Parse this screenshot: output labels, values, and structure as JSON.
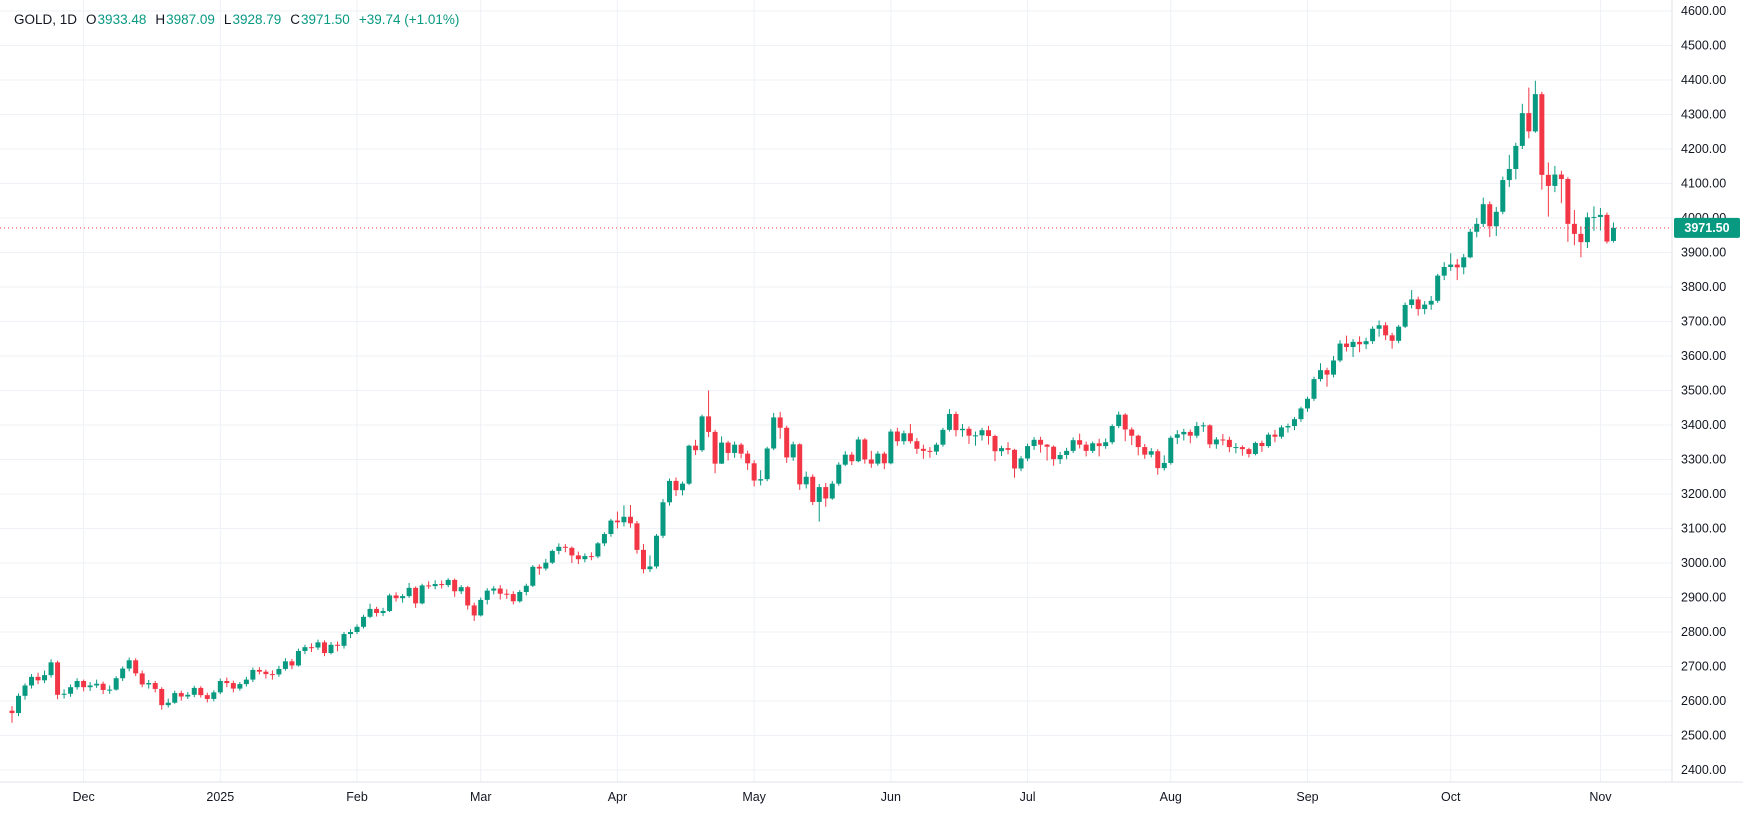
{
  "header": {
    "symbol_title": "GOLD, 1D",
    "open_label": "O",
    "open": "3933.48",
    "high_label": "H",
    "high": "3987.09",
    "low_label": "L",
    "low": "3928.79",
    "close_label": "C",
    "close": "3971.50",
    "change": "+39.74 (+1.01%)"
  },
  "colors": {
    "up": "#089981",
    "down": "#f23645",
    "text": "#131722",
    "grid": "#eef1f6",
    "axis_line": "#e0e3eb",
    "price_line": "#f23645",
    "price_tag_bg": "#089981",
    "price_tag_text": "#ffffff",
    "background": "#ffffff"
  },
  "chart_data": {
    "type": "candlestick",
    "title": "GOLD, 1D",
    "symbol": "GOLD",
    "timeframe": "1D",
    "legend_position": "top-left",
    "grid": true,
    "y_axis": {
      "min": 2400,
      "max": 4600,
      "step": 100,
      "decimals": 2,
      "side": "right"
    },
    "x_axis": {
      "months": [
        {
          "label": "Dec",
          "index": 11
        },
        {
          "label": "2025",
          "index": 32
        },
        {
          "label": "Feb",
          "index": 53
        },
        {
          "label": "Mar",
          "index": 72
        },
        {
          "label": "Apr",
          "index": 93
        },
        {
          "label": "May",
          "index": 114
        },
        {
          "label": "Jun",
          "index": 135
        },
        {
          "label": "Jul",
          "index": 156
        },
        {
          "label": "Aug",
          "index": 178
        },
        {
          "label": "Sep",
          "index": 199
        },
        {
          "label": "Oct",
          "index": 221
        },
        {
          "label": "Nov",
          "index": 244
        }
      ]
    },
    "price_line": {
      "value": 3971.5,
      "label": "3971.50"
    },
    "last_candle": {
      "open": 3933.48,
      "high": 3987.09,
      "low": 3928.79,
      "close": 3971.5,
      "change": "+39.74 (+1.01%)"
    },
    "candles": [
      [
        2572,
        2585,
        2537,
        2565
      ],
      [
        2565,
        2622,
        2556,
        2615
      ],
      [
        2615,
        2651,
        2604,
        2645
      ],
      [
        2645,
        2678,
        2636,
        2670
      ],
      [
        2670,
        2682,
        2649,
        2660
      ],
      [
        2660,
        2688,
        2652,
        2675
      ],
      [
        2675,
        2721,
        2668,
        2712
      ],
      [
        2712,
        2717,
        2605,
        2618
      ],
      [
        2618,
        2634,
        2607,
        2621
      ],
      [
        2621,
        2648,
        2612,
        2640
      ],
      [
        2640,
        2666,
        2633,
        2658
      ],
      [
        2658,
        2662,
        2628,
        2640
      ],
      [
        2640,
        2655,
        2629,
        2645
      ],
      [
        2645,
        2662,
        2638,
        2650
      ],
      [
        2650,
        2656,
        2620,
        2632
      ],
      [
        2632,
        2645,
        2621,
        2633
      ],
      [
        2633,
        2672,
        2630,
        2666
      ],
      [
        2666,
        2700,
        2658,
        2694
      ],
      [
        2694,
        2726,
        2686,
        2718
      ],
      [
        2718,
        2724,
        2672,
        2680
      ],
      [
        2680,
        2688,
        2640,
        2648
      ],
      [
        2648,
        2661,
        2636,
        2652
      ],
      [
        2652,
        2658,
        2625,
        2635
      ],
      [
        2635,
        2640,
        2575,
        2588
      ],
      [
        2588,
        2607,
        2581,
        2595
      ],
      [
        2595,
        2630,
        2592,
        2623
      ],
      [
        2623,
        2630,
        2601,
        2613
      ],
      [
        2613,
        2626,
        2606,
        2618
      ],
      [
        2618,
        2644,
        2611,
        2638
      ],
      [
        2638,
        2643,
        2610,
        2617
      ],
      [
        2617,
        2624,
        2596,
        2606
      ],
      [
        2606,
        2631,
        2599,
        2625
      ],
      [
        2625,
        2665,
        2620,
        2658
      ],
      [
        2658,
        2668,
        2640,
        2652
      ],
      [
        2652,
        2659,
        2625,
        2636
      ],
      [
        2636,
        2655,
        2630,
        2649
      ],
      [
        2649,
        2670,
        2642,
        2662
      ],
      [
        2662,
        2697,
        2655,
        2690
      ],
      [
        2690,
        2698,
        2677,
        2685
      ],
      [
        2685,
        2691,
        2665,
        2678
      ],
      [
        2678,
        2689,
        2662,
        2677
      ],
      [
        2677,
        2702,
        2670,
        2693
      ],
      [
        2693,
        2724,
        2688,
        2715
      ],
      [
        2715,
        2722,
        2692,
        2703
      ],
      [
        2703,
        2752,
        2700,
        2745
      ],
      [
        2745,
        2763,
        2736,
        2756
      ],
      [
        2756,
        2767,
        2742,
        2755
      ],
      [
        2755,
        2778,
        2748,
        2770
      ],
      [
        2770,
        2776,
        2730,
        2739
      ],
      [
        2739,
        2771,
        2735,
        2763
      ],
      [
        2763,
        2772,
        2744,
        2760
      ],
      [
        2760,
        2800,
        2752,
        2794
      ],
      [
        2794,
        2808,
        2782,
        2800
      ],
      [
        2800,
        2822,
        2794,
        2815
      ],
      [
        2815,
        2850,
        2810,
        2844
      ],
      [
        2844,
        2882,
        2840,
        2867
      ],
      [
        2867,
        2873,
        2845,
        2855
      ],
      [
        2855,
        2870,
        2846,
        2861
      ],
      [
        2861,
        2911,
        2858,
        2906
      ],
      [
        2906,
        2915,
        2888,
        2898
      ],
      [
        2898,
        2910,
        2885,
        2904
      ],
      [
        2904,
        2942,
        2899,
        2928
      ],
      [
        2928,
        2932,
        2870,
        2883
      ],
      [
        2883,
        2940,
        2880,
        2935
      ],
      [
        2935,
        2947,
        2925,
        2933
      ],
      [
        2933,
        2950,
        2924,
        2939
      ],
      [
        2939,
        2949,
        2926,
        2936
      ],
      [
        2936,
        2956,
        2930,
        2951
      ],
      [
        2951,
        2955,
        2902,
        2918
      ],
      [
        2918,
        2936,
        2910,
        2930
      ],
      [
        2930,
        2934,
        2865,
        2877
      ],
      [
        2877,
        2885,
        2832,
        2848
      ],
      [
        2848,
        2900,
        2845,
        2893
      ],
      [
        2893,
        2927,
        2880,
        2920
      ],
      [
        2920,
        2933,
        2909,
        2926
      ],
      [
        2926,
        2936,
        2894,
        2911
      ],
      [
        2911,
        2924,
        2896,
        2910
      ],
      [
        2910,
        2918,
        2880,
        2889
      ],
      [
        2889,
        2922,
        2885,
        2916
      ],
      [
        2916,
        2940,
        2906,
        2934
      ],
      [
        2934,
        2994,
        2930,
        2989
      ],
      [
        2989,
        2996,
        2966,
        2984
      ],
      [
        2984,
        3012,
        2978,
        3001
      ],
      [
        3001,
        3039,
        2997,
        3035
      ],
      [
        3035,
        3057,
        3025,
        3047
      ],
      [
        3047,
        3055,
        3031,
        3044
      ],
      [
        3044,
        3048,
        3000,
        3022
      ],
      [
        3022,
        3033,
        2997,
        3011
      ],
      [
        3011,
        3028,
        3002,
        3020
      ],
      [
        3020,
        3031,
        3008,
        3019
      ],
      [
        3019,
        3061,
        3014,
        3057
      ],
      [
        3057,
        3089,
        3049,
        3084
      ],
      [
        3084,
        3128,
        3076,
        3123
      ],
      [
        3123,
        3149,
        3100,
        3118
      ],
      [
        3118,
        3167,
        3106,
        3134
      ],
      [
        3134,
        3168,
        3102,
        3115
      ],
      [
        3115,
        3122,
        3027,
        3038
      ],
      [
        3038,
        3055,
        2970,
        2982
      ],
      [
        2982,
        3022,
        2974,
        2990
      ],
      [
        2990,
        3084,
        2984,
        3079
      ],
      [
        3079,
        3185,
        3072,
        3176
      ],
      [
        3176,
        3245,
        3166,
        3238
      ],
      [
        3238,
        3248,
        3194,
        3211
      ],
      [
        3211,
        3236,
        3196,
        3230
      ],
      [
        3230,
        3343,
        3226,
        3340
      ],
      [
        3340,
        3357,
        3313,
        3327
      ],
      [
        3327,
        3430,
        3322,
        3425
      ],
      [
        3425,
        3500,
        3365,
        3380
      ],
      [
        3380,
        3386,
        3260,
        3288
      ],
      [
        3288,
        3367,
        3287,
        3349
      ],
      [
        3349,
        3354,
        3297,
        3319
      ],
      [
        3319,
        3352,
        3305,
        3343
      ],
      [
        3343,
        3348,
        3303,
        3317
      ],
      [
        3317,
        3326,
        3270,
        3289
      ],
      [
        3289,
        3298,
        3222,
        3239
      ],
      [
        3239,
        3269,
        3225,
        3243
      ],
      [
        3243,
        3337,
        3237,
        3332
      ],
      [
        3332,
        3435,
        3327,
        3422
      ],
      [
        3422,
        3438,
        3360,
        3392
      ],
      [
        3392,
        3398,
        3290,
        3306
      ],
      [
        3306,
        3352,
        3296,
        3344
      ],
      [
        3344,
        3347,
        3212,
        3228
      ],
      [
        3228,
        3265,
        3216,
        3250
      ],
      [
        3250,
        3257,
        3168,
        3177
      ],
      [
        3177,
        3229,
        3120,
        3220
      ],
      [
        3220,
        3232,
        3163,
        3187
      ],
      [
        3187,
        3238,
        3183,
        3230
      ],
      [
        3230,
        3292,
        3224,
        3285
      ],
      [
        3285,
        3324,
        3281,
        3314
      ],
      [
        3314,
        3322,
        3284,
        3295
      ],
      [
        3295,
        3366,
        3292,
        3358
      ],
      [
        3358,
        3362,
        3288,
        3300
      ],
      [
        3300,
        3325,
        3276,
        3288
      ],
      [
        3288,
        3324,
        3282,
        3317
      ],
      [
        3317,
        3323,
        3272,
        3289
      ],
      [
        3289,
        3388,
        3286,
        3381
      ],
      [
        3381,
        3392,
        3340,
        3353
      ],
      [
        3353,
        3384,
        3343,
        3376
      ],
      [
        3376,
        3403,
        3346,
        3353
      ],
      [
        3353,
        3362,
        3316,
        3331
      ],
      [
        3331,
        3343,
        3302,
        3325
      ],
      [
        3325,
        3336,
        3305,
        3323
      ],
      [
        3323,
        3349,
        3313,
        3343
      ],
      [
        3343,
        3392,
        3337,
        3386
      ],
      [
        3386,
        3446,
        3381,
        3432
      ],
      [
        3432,
        3439,
        3367,
        3385
      ],
      [
        3385,
        3403,
        3366,
        3389
      ],
      [
        3389,
        3396,
        3345,
        3369
      ],
      [
        3369,
        3381,
        3340,
        3370
      ],
      [
        3370,
        3392,
        3355,
        3385
      ],
      [
        3385,
        3398,
        3343,
        3368
      ],
      [
        3368,
        3372,
        3295,
        3324
      ],
      [
        3324,
        3340,
        3310,
        3333
      ],
      [
        3333,
        3350,
        3315,
        3328
      ],
      [
        3328,
        3331,
        3247,
        3274
      ],
      [
        3274,
        3310,
        3266,
        3303
      ],
      [
        3303,
        3346,
        3295,
        3339
      ],
      [
        3339,
        3365,
        3328,
        3357
      ],
      [
        3357,
        3366,
        3320,
        3343
      ],
      [
        3343,
        3345,
        3297,
        3337
      ],
      [
        3337,
        3341,
        3282,
        3301
      ],
      [
        3301,
        3322,
        3287,
        3313
      ],
      [
        3313,
        3334,
        3301,
        3325
      ],
      [
        3325,
        3364,
        3319,
        3356
      ],
      [
        3356,
        3375,
        3332,
        3343
      ],
      [
        3343,
        3352,
        3309,
        3325
      ],
      [
        3325,
        3352,
        3319,
        3347
      ],
      [
        3347,
        3360,
        3309,
        3339
      ],
      [
        3339,
        3361,
        3331,
        3350
      ],
      [
        3350,
        3402,
        3344,
        3397
      ],
      [
        3397,
        3439,
        3391,
        3430
      ],
      [
        3430,
        3434,
        3353,
        3387
      ],
      [
        3387,
        3393,
        3342,
        3369
      ],
      [
        3369,
        3372,
        3312,
        3336
      ],
      [
        3336,
        3345,
        3302,
        3314
      ],
      [
        3314,
        3333,
        3306,
        3324
      ],
      [
        3324,
        3330,
        3256,
        3275
      ],
      [
        3275,
        3312,
        3268,
        3290
      ],
      [
        3290,
        3369,
        3285,
        3363
      ],
      [
        3363,
        3385,
        3345,
        3373
      ],
      [
        3373,
        3389,
        3355,
        3380
      ],
      [
        3380,
        3387,
        3347,
        3369
      ],
      [
        3369,
        3409,
        3362,
        3397
      ],
      [
        3397,
        3408,
        3380,
        3399
      ],
      [
        3399,
        3402,
        3333,
        3344
      ],
      [
        3344,
        3365,
        3331,
        3358
      ],
      [
        3358,
        3374,
        3341,
        3357
      ],
      [
        3357,
        3366,
        3321,
        3336
      ],
      [
        3336,
        3348,
        3318,
        3336
      ],
      [
        3336,
        3341,
        3311,
        3330
      ],
      [
        3330,
        3334,
        3306,
        3316
      ],
      [
        3316,
        3352,
        3312,
        3348
      ],
      [
        3348,
        3355,
        3322,
        3339
      ],
      [
        3339,
        3378,
        3334,
        3372
      ],
      [
        3372,
        3386,
        3350,
        3366
      ],
      [
        3366,
        3399,
        3360,
        3393
      ],
      [
        3393,
        3404,
        3378,
        3397
      ],
      [
        3397,
        3423,
        3385,
        3417
      ],
      [
        3417,
        3453,
        3409,
        3448
      ],
      [
        3448,
        3482,
        3438,
        3476
      ],
      [
        3476,
        3540,
        3470,
        3533
      ],
      [
        3533,
        3579,
        3526,
        3559
      ],
      [
        3559,
        3566,
        3511,
        3546
      ],
      [
        3546,
        3600,
        3538,
        3587
      ],
      [
        3587,
        3646,
        3582,
        3636
      ],
      [
        3636,
        3659,
        3613,
        3626
      ],
      [
        3626,
        3649,
        3597,
        3641
      ],
      [
        3641,
        3657,
        3611,
        3634
      ],
      [
        3634,
        3653,
        3620,
        3643
      ],
      [
        3643,
        3686,
        3635,
        3679
      ],
      [
        3679,
        3703,
        3656,
        3689
      ],
      [
        3689,
        3698,
        3646,
        3660
      ],
      [
        3660,
        3667,
        3621,
        3644
      ],
      [
        3644,
        3690,
        3637,
        3685
      ],
      [
        3685,
        3755,
        3681,
        3748
      ],
      [
        3748,
        3791,
        3738,
        3764
      ],
      [
        3764,
        3772,
        3717,
        3736
      ],
      [
        3736,
        3759,
        3721,
        3749
      ],
      [
        3749,
        3774,
        3734,
        3760
      ],
      [
        3760,
        3838,
        3754,
        3833
      ],
      [
        3833,
        3872,
        3820,
        3858
      ],
      [
        3858,
        3898,
        3847,
        3865
      ],
      [
        3865,
        3881,
        3820,
        3857
      ],
      [
        3857,
        3896,
        3837,
        3886
      ],
      [
        3886,
        3969,
        3883,
        3960
      ],
      [
        3960,
        4000,
        3944,
        3983
      ],
      [
        3983,
        4059,
        3974,
        4040
      ],
      [
        4040,
        4048,
        3945,
        3976
      ],
      [
        3976,
        4032,
        3948,
        4018
      ],
      [
        4018,
        4120,
        4011,
        4110
      ],
      [
        4110,
        4183,
        4090,
        4142
      ],
      [
        4142,
        4218,
        4112,
        4209
      ],
      [
        4209,
        4331,
        4200,
        4304
      ],
      [
        4304,
        4378,
        4231,
        4251
      ],
      [
        4251,
        4398,
        4247,
        4359
      ],
      [
        4359,
        4366,
        4082,
        4125
      ],
      [
        4125,
        4161,
        4004,
        4093
      ],
      [
        4093,
        4151,
        4075,
        4126
      ],
      [
        4126,
        4137,
        4043,
        4113
      ],
      [
        4113,
        4118,
        3931,
        3983
      ],
      [
        3983,
        4023,
        3921,
        3954
      ],
      [
        3954,
        3976,
        3886,
        3930
      ],
      [
        3930,
        4016,
        3913,
        4002
      ],
      [
        4002,
        4034,
        3963,
        4003
      ],
      [
        4003,
        4029,
        3964,
        4009
      ],
      [
        4009,
        4016,
        3926,
        3931.76
      ],
      [
        3933.48,
        3987.09,
        3928.79,
        3971.5
      ]
    ]
  }
}
